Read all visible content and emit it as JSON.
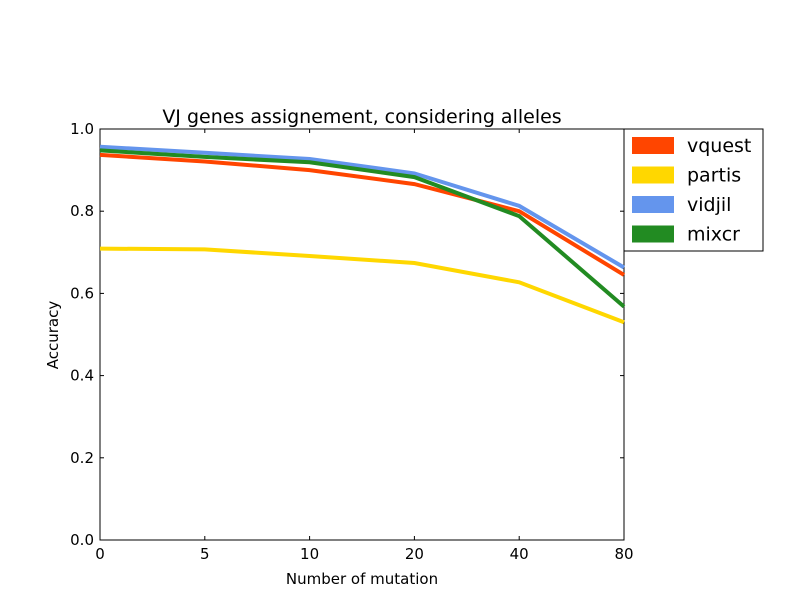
{
  "chart_data": {
    "type": "line",
    "title": "VJ genes assignement, considering alleles",
    "xlabel": "Number of mutation",
    "ylabel": "Accuracy",
    "categories": [
      "0",
      "5",
      "10",
      "20",
      "40",
      "80"
    ],
    "ylim": [
      0.0,
      1.0
    ],
    "yticks": [
      "0.0",
      "0.2",
      "0.4",
      "0.6",
      "0.8",
      "1.0"
    ],
    "grid": false,
    "legend_position": "outside-top-right",
    "series": [
      {
        "name": "vquest",
        "color": "#ff4500",
        "values": [
          0.937,
          0.921,
          0.9,
          0.866,
          0.8,
          0.645
        ]
      },
      {
        "name": "partis",
        "color": "#ffd700",
        "values": [
          0.709,
          0.707,
          0.691,
          0.674,
          0.627,
          0.53
        ]
      },
      {
        "name": "vidjil",
        "color": "#6495ed",
        "values": [
          0.957,
          0.942,
          0.927,
          0.892,
          0.813,
          0.663
        ]
      },
      {
        "name": "mixcr",
        "color": "#228b22",
        "values": [
          0.948,
          0.932,
          0.919,
          0.883,
          0.788,
          0.568
        ]
      }
    ]
  }
}
